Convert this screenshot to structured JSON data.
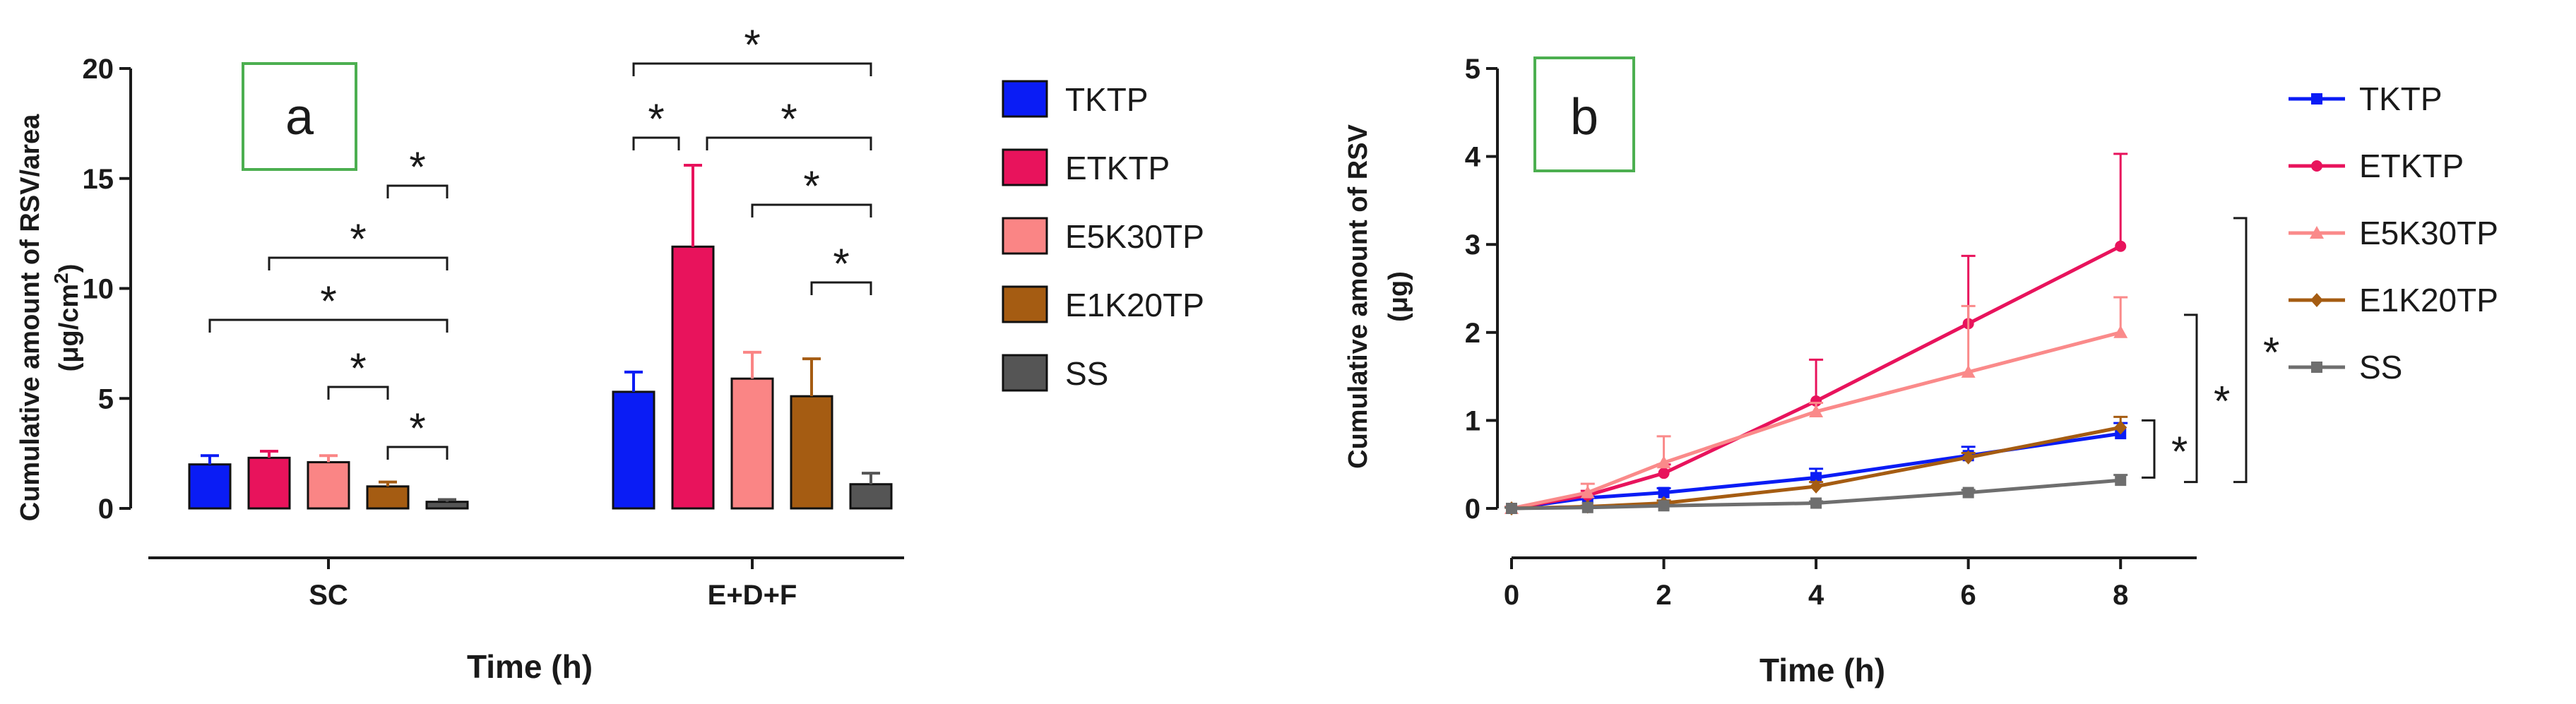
{
  "chart_data": [
    {
      "panel": "a",
      "type": "bar",
      "xlabel": "Time (h)",
      "ylabel_line1": "Cumulative amount of RSV/area",
      "ylabel_line2_main": "(μg/cm",
      "ylabel_line2_sup": "2",
      "ylabel_line2_end": ")",
      "ylim": [
        0,
        20
      ],
      "yticks": [
        "0",
        "5",
        "10",
        "15",
        "20"
      ],
      "categories": [
        "SC",
        "E+D+F"
      ],
      "series": [
        {
          "name": "TKTP",
          "color": "#0a1cf5",
          "values": [
            2.0,
            5.3
          ],
          "errors": [
            0.4,
            0.9
          ]
        },
        {
          "name": "ETKTP",
          "color": "#e8135c",
          "values": [
            2.3,
            11.9
          ],
          "errors": [
            0.3,
            3.7
          ]
        },
        {
          "name": "E5K30TP",
          "color": "#fa8585",
          "values": [
            2.1,
            5.9
          ],
          "errors": [
            0.3,
            1.2
          ]
        },
        {
          "name": "E1K20TP",
          "color": "#a55c12",
          "values": [
            1.0,
            5.1
          ],
          "errors": [
            0.2,
            1.7
          ]
        },
        {
          "name": "SS",
          "color": "#555555",
          "values": [
            0.3,
            1.1
          ],
          "errors": [
            0.1,
            0.5
          ]
        }
      ],
      "significance": [
        {
          "group": 0,
          "from": 2,
          "to": 3,
          "label": "*"
        },
        {
          "group": 0,
          "from": 3,
          "to": 4,
          "label": "*"
        },
        {
          "group": 0,
          "from": 3,
          "to": 4,
          "label": "*",
          "level": "top"
        },
        {
          "group": 0,
          "from": 1,
          "to": 4,
          "label": "*"
        },
        {
          "group": 0,
          "from": 0,
          "to": 4,
          "label": "*"
        },
        {
          "group": 1,
          "from": 3,
          "to": 4,
          "label": "*"
        },
        {
          "group": 1,
          "from": 2,
          "to": 4,
          "label": "*"
        },
        {
          "group": 1,
          "from": 0,
          "to": 1,
          "label": "*"
        },
        {
          "group": 1,
          "from": 1,
          "to": 4,
          "label": "*"
        },
        {
          "group": 1,
          "from": 0,
          "to": 4,
          "label": "*"
        }
      ]
    },
    {
      "panel": "b",
      "type": "line",
      "xlabel": "Time (h)",
      "ylabel_line1": "Cumulative amount of RSV",
      "ylabel_line2": "(μg)",
      "xlim": [
        0,
        9
      ],
      "ylim": [
        0,
        5
      ],
      "xticks": [
        "0",
        "2",
        "4",
        "6",
        "8"
      ],
      "yticks": [
        "0",
        "1",
        "2",
        "3",
        "4",
        "5"
      ],
      "x": [
        0,
        1,
        2,
        4,
        6,
        8
      ],
      "series": [
        {
          "name": "TKTP",
          "color": "#0a1cf5",
          "marker": "square",
          "values": [
            0,
            0.12,
            0.18,
            0.35,
            0.6,
            0.85
          ],
          "errors": [
            0.02,
            0.04,
            0.05,
            0.1,
            0.1,
            0.12
          ]
        },
        {
          "name": "ETKTP",
          "color": "#e8135c",
          "marker": "circle",
          "values": [
            0,
            0.15,
            0.4,
            1.22,
            2.1,
            2.98
          ],
          "errors": [
            0.02,
            0.05,
            0.1,
            0.47,
            0.77,
            1.05
          ]
        },
        {
          "name": "E5K30TP",
          "color": "#fa8a8a",
          "marker": "triangle",
          "values": [
            0,
            0.18,
            0.52,
            1.1,
            1.55,
            2.0
          ],
          "errors": [
            0.02,
            0.1,
            0.3,
            0.1,
            0.75,
            0.4
          ]
        },
        {
          "name": "E1K20TP",
          "color": "#a55c12",
          "marker": "diamond",
          "values": [
            0,
            0.02,
            0.06,
            0.25,
            0.58,
            0.92
          ],
          "errors": [
            0.01,
            0.01,
            0.03,
            0.05,
            0.05,
            0.12
          ]
        },
        {
          "name": "SS",
          "color": "#6e6e6e",
          "marker": "square",
          "values": [
            0,
            0.01,
            0.03,
            0.06,
            0.18,
            0.32
          ],
          "errors": [
            0.01,
            0.01,
            0.01,
            0.02,
            0.03,
            0.06
          ]
        }
      ],
      "significance": [
        {
          "from": 0.35,
          "to": 1.0,
          "label": "*"
        },
        {
          "from": 0.3,
          "to": 2.2,
          "label": "*"
        },
        {
          "from": 0.3,
          "to": 3.3,
          "label": "*"
        }
      ]
    }
  ]
}
